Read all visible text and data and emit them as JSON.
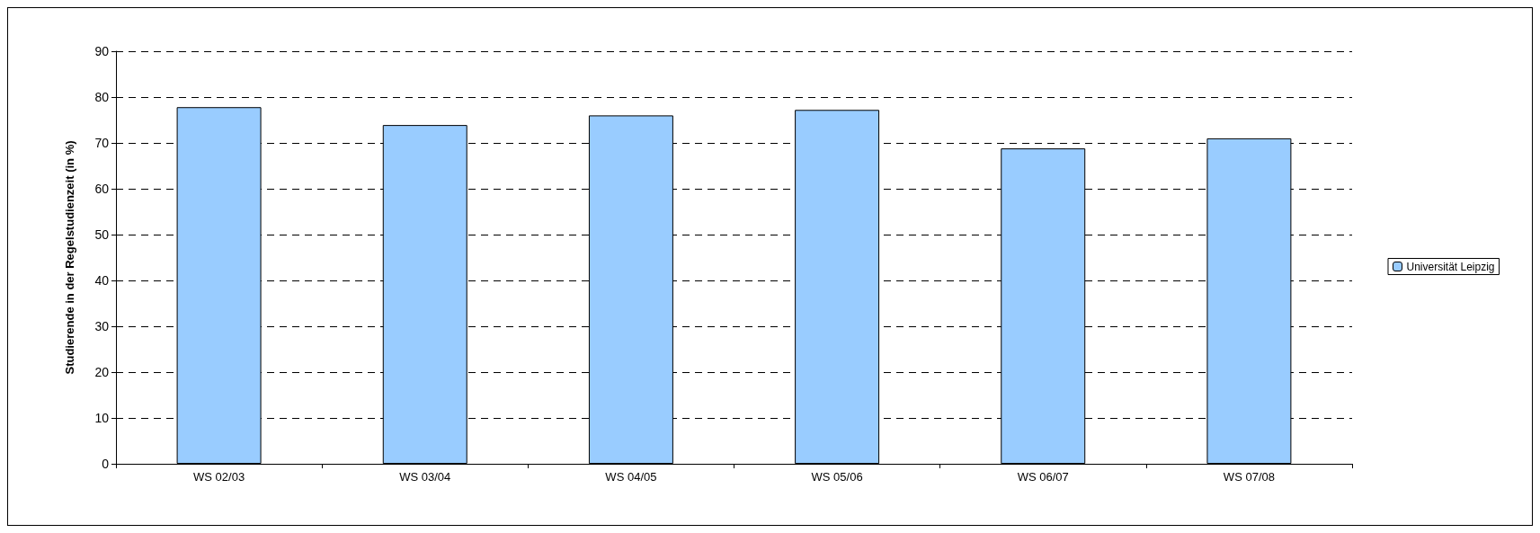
{
  "chart_data": {
    "type": "bar",
    "ylabel": "Studierende in der Regelstudienzeit (in %)",
    "categories": [
      "WS 02/03",
      "WS 03/04",
      "WS 04/05",
      "WS 05/06",
      "WS 06/07",
      "WS 07/08"
    ],
    "series": [
      {
        "name": "Universität Leipzig",
        "color": "#99ccff",
        "values": [
          77.8,
          73.9,
          76.0,
          77.2,
          68.8,
          71.0
        ]
      }
    ],
    "ylim": [
      0,
      90
    ],
    "yticks": [
      0,
      10,
      20,
      30,
      40,
      50,
      60,
      70,
      80,
      90
    ],
    "grid": "y",
    "legend": "right"
  }
}
